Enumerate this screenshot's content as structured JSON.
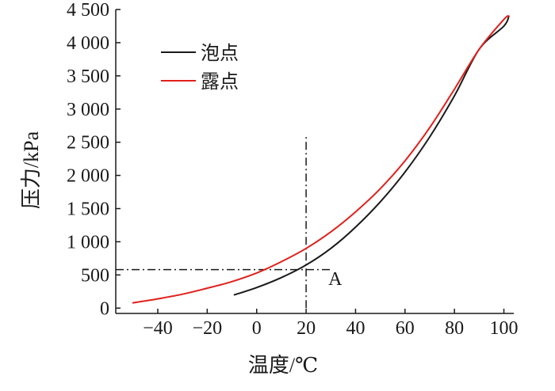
{
  "chart_data": {
    "type": "line",
    "xlabel": "温度/℃",
    "ylabel": "压力/kPa",
    "xlim": [
      -57,
      104
    ],
    "ylim": [
      -80,
      4500
    ],
    "x_ticks": [
      -40,
      -20,
      0,
      20,
      40,
      60,
      80,
      100
    ],
    "x_tick_labels": [
      "−40",
      "−20",
      "0",
      "20",
      "40",
      "60",
      "80",
      "100"
    ],
    "y_ticks": [
      0,
      500,
      1000,
      1500,
      2000,
      2500,
      3000,
      3500,
      4000,
      4500
    ],
    "y_tick_labels": [
      "0",
      "500",
      "1 000",
      "1 500",
      "2 000",
      "2 500",
      "3 000",
      "3 500",
      "4 000",
      "4 500"
    ],
    "grid": false,
    "legend_position": "top-left",
    "series": [
      {
        "name": "泡点",
        "color": "#1a1a1a",
        "x": [
          -9,
          0,
          10,
          20,
          30,
          40,
          50,
          60,
          70,
          80,
          90,
          100,
          102
        ],
        "y": [
          200,
          310,
          460,
          650,
          900,
          1220,
          1600,
          2050,
          2580,
          3200,
          3900,
          4250,
          4400
        ]
      },
      {
        "name": "露点",
        "color": "#e0201b",
        "x": [
          -50,
          -40,
          -30,
          -20,
          -10,
          0,
          10,
          20,
          30,
          40,
          50,
          60,
          70,
          80,
          90,
          100,
          102
        ],
        "y": [
          80,
          140,
          210,
          300,
          400,
          530,
          700,
          900,
          1150,
          1450,
          1800,
          2220,
          2720,
          3300,
          3900,
          4350,
          4400
        ]
      }
    ],
    "reference_lines": {
      "vertical_x": 20,
      "vertical_y_range": [
        0,
        2600
      ],
      "horizontal_y": 580,
      "horizontal_x_range": [
        -57,
        30
      ]
    },
    "annotations": [
      {
        "text": "A",
        "x": 29,
        "y": 350
      }
    ]
  }
}
